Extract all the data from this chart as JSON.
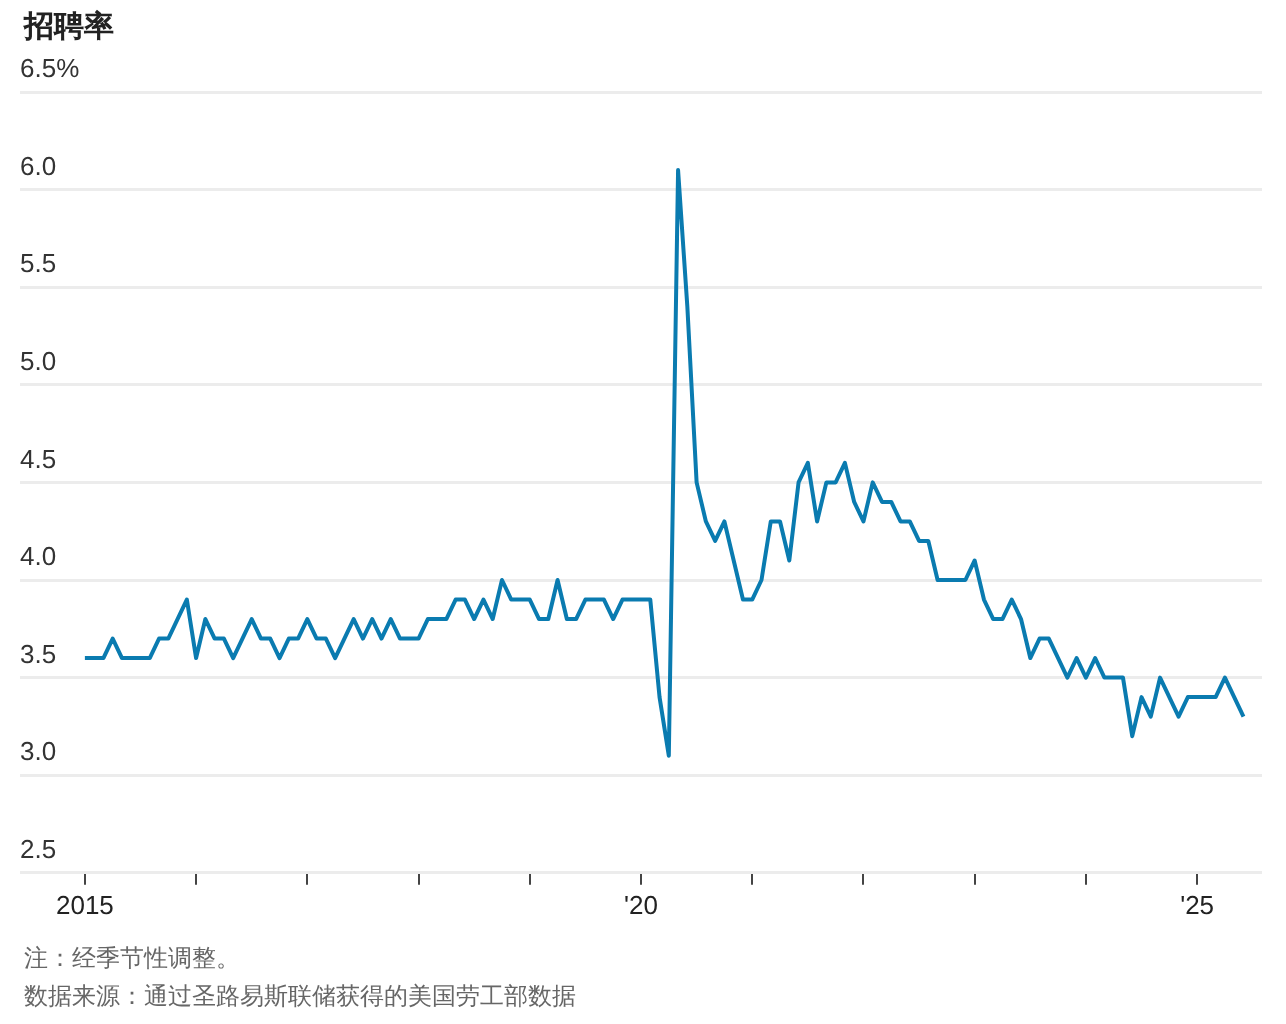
{
  "chart_data": {
    "type": "line",
    "title": "招聘率",
    "x": [
      "2015-01",
      "2015-02",
      "2015-03",
      "2015-04",
      "2015-05",
      "2015-06",
      "2015-07",
      "2015-08",
      "2015-09",
      "2015-10",
      "2015-11",
      "2015-12",
      "2016-01",
      "2016-02",
      "2016-03",
      "2016-04",
      "2016-05",
      "2016-06",
      "2016-07",
      "2016-08",
      "2016-09",
      "2016-10",
      "2016-11",
      "2016-12",
      "2017-01",
      "2017-02",
      "2017-03",
      "2017-04",
      "2017-05",
      "2017-06",
      "2017-07",
      "2017-08",
      "2017-09",
      "2017-10",
      "2017-11",
      "2017-12",
      "2018-01",
      "2018-02",
      "2018-03",
      "2018-04",
      "2018-05",
      "2018-06",
      "2018-07",
      "2018-08",
      "2018-09",
      "2018-10",
      "2018-11",
      "2018-12",
      "2019-01",
      "2019-02",
      "2019-03",
      "2019-04",
      "2019-05",
      "2019-06",
      "2019-07",
      "2019-08",
      "2019-09",
      "2019-10",
      "2019-11",
      "2019-12",
      "2020-01",
      "2020-02",
      "2020-03",
      "2020-04",
      "2020-05",
      "2020-06",
      "2020-07",
      "2020-08",
      "2020-09",
      "2020-10",
      "2020-11",
      "2020-12",
      "2021-01",
      "2021-02",
      "2021-03",
      "2021-04",
      "2021-05",
      "2021-06",
      "2021-07",
      "2021-08",
      "2021-09",
      "2021-10",
      "2021-11",
      "2021-12",
      "2022-01",
      "2022-02",
      "2022-03",
      "2022-04",
      "2022-05",
      "2022-06",
      "2022-07",
      "2022-08",
      "2022-09",
      "2022-10",
      "2022-11",
      "2022-12",
      "2023-01",
      "2023-02",
      "2023-03",
      "2023-04",
      "2023-05",
      "2023-06",
      "2023-07",
      "2023-08",
      "2023-09",
      "2023-10",
      "2023-11",
      "2023-12",
      "2024-01",
      "2024-02",
      "2024-03",
      "2024-04",
      "2024-05",
      "2024-06",
      "2024-07",
      "2024-08",
      "2024-09",
      "2024-10",
      "2024-11",
      "2024-12",
      "2025-01",
      "2025-02",
      "2025-03",
      "2025-04",
      "2025-05",
      "2025-06"
    ],
    "series": [
      {
        "color": "#0a7bb0",
        "values": [
          3.6,
          3.6,
          3.6,
          3.7,
          3.6,
          3.6,
          3.6,
          3.6,
          3.7,
          3.7,
          3.8,
          3.9,
          3.6,
          3.8,
          3.7,
          3.7,
          3.6,
          3.7,
          3.8,
          3.7,
          3.7,
          3.6,
          3.7,
          3.7,
          3.8,
          3.7,
          3.7,
          3.6,
          3.7,
          3.8,
          3.7,
          3.8,
          3.7,
          3.8,
          3.7,
          3.7,
          3.7,
          3.8,
          3.8,
          3.8,
          3.9,
          3.9,
          3.8,
          3.9,
          3.8,
          4.0,
          3.9,
          3.9,
          3.9,
          3.8,
          3.8,
          4.0,
          3.8,
          3.8,
          3.9,
          3.9,
          3.9,
          3.8,
          3.9,
          3.9,
          3.9,
          3.9,
          3.4,
          3.1,
          6.1,
          5.4,
          4.5,
          4.3,
          4.2,
          4.3,
          4.1,
          3.9,
          3.9,
          4.0,
          4.3,
          4.3,
          4.1,
          4.5,
          4.6,
          4.3,
          4.5,
          4.5,
          4.6,
          4.4,
          4.3,
          4.5,
          4.4,
          4.4,
          4.3,
          4.3,
          4.2,
          4.2,
          4.0,
          4.0,
          4.0,
          4.0,
          4.1,
          3.9,
          3.8,
          3.8,
          3.9,
          3.8,
          3.6,
          3.7,
          3.7,
          3.6,
          3.5,
          3.6,
          3.5,
          3.6,
          3.5,
          3.5,
          3.5,
          3.2,
          3.4,
          3.3,
          3.5,
          3.4,
          3.3,
          3.4,
          3.4,
          3.4,
          3.4,
          3.5,
          3.4,
          3.3
        ]
      }
    ],
    "xlim": [
      "2014-06",
      "2025-08"
    ],
    "xticks": [
      {
        "value": "2015-01",
        "label": "2015"
      },
      {
        "value": "2016-01",
        "label": null
      },
      {
        "value": "2017-01",
        "label": null
      },
      {
        "value": "2018-01",
        "label": null
      },
      {
        "value": "2019-01",
        "label": null
      },
      {
        "value": "2020-01",
        "label": "'20"
      },
      {
        "value": "2021-01",
        "label": null
      },
      {
        "value": "2022-01",
        "label": null
      },
      {
        "value": "2023-01",
        "label": null
      },
      {
        "value": "2024-01",
        "label": null
      },
      {
        "value": "2025-01",
        "label": "'25"
      }
    ],
    "ylim": [
      2.5,
      6.5
    ],
    "yticks": [
      2.5,
      {
        "value": 3,
        "label": "3.0"
      },
      3.5,
      {
        "value": 4,
        "label": "4.0"
      },
      4.5,
      {
        "value": 5,
        "label": "5.0"
      },
      5.5,
      {
        "value": 6,
        "label": "6.0"
      },
      {
        "value": 6.5,
        "label": "6.5%"
      }
    ],
    "grid": "y",
    "marker": "none",
    "line_style": "solid",
    "annotations": [
      "注：经季节性调整。",
      "数据来源：通过圣路易斯联储获得的美国劳工部数据"
    ]
  }
}
